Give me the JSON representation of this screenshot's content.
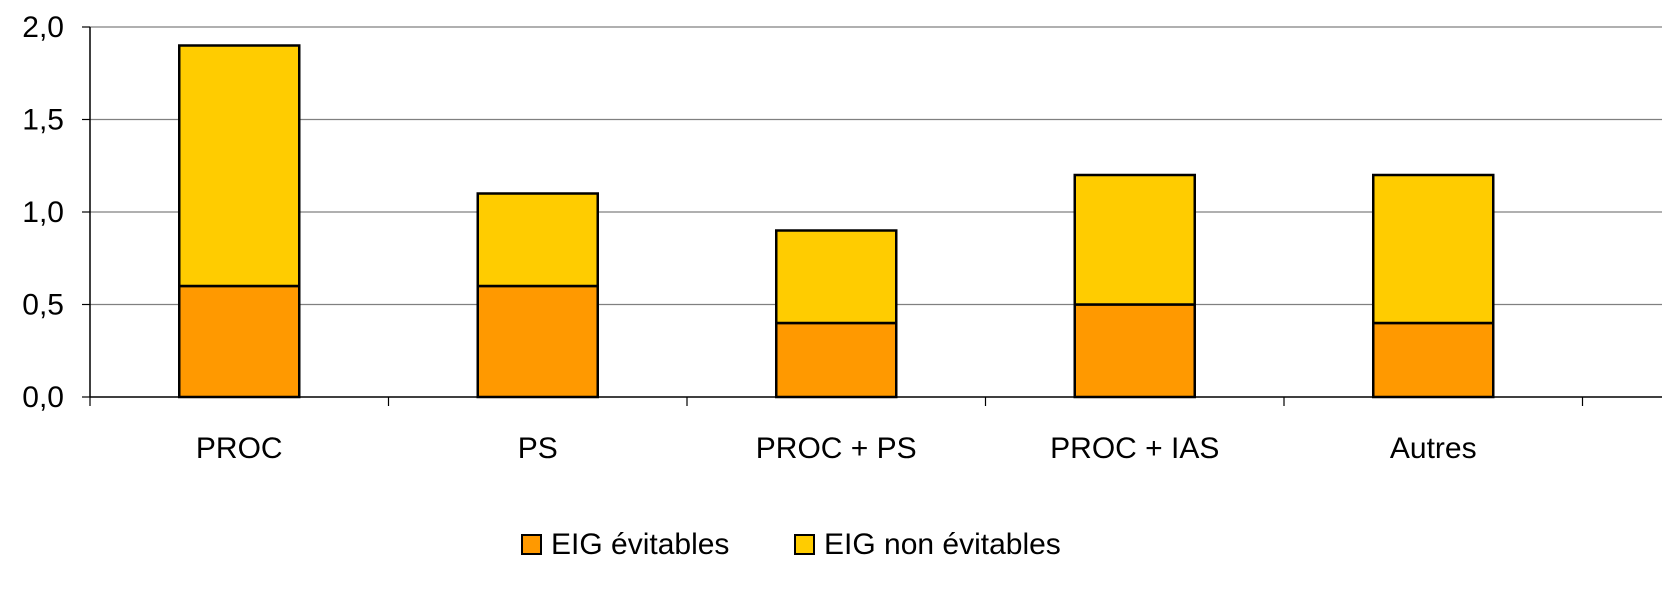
{
  "chart_data": {
    "type": "bar",
    "stacked": true,
    "categories": [
      "PROC",
      "PS",
      "PROC + PS",
      "PROC + IAS",
      "Autres"
    ],
    "series": [
      {
        "name": "EIG évitables",
        "values": [
          0.6,
          0.6,
          0.4,
          0.5,
          0.4
        ],
        "color": "#FF9900"
      },
      {
        "name": "EIG non évitables",
        "values": [
          1.3,
          0.5,
          0.5,
          0.7,
          0.8
        ],
        "color": "#FFCC00"
      }
    ],
    "title": "",
    "xlabel": "",
    "ylabel": "",
    "ylim": [
      0,
      2
    ],
    "yticks": [
      "0,0",
      "0,5",
      "1,0",
      "1,5",
      "2,0"
    ],
    "grid": true,
    "legend_position": "bottom"
  }
}
